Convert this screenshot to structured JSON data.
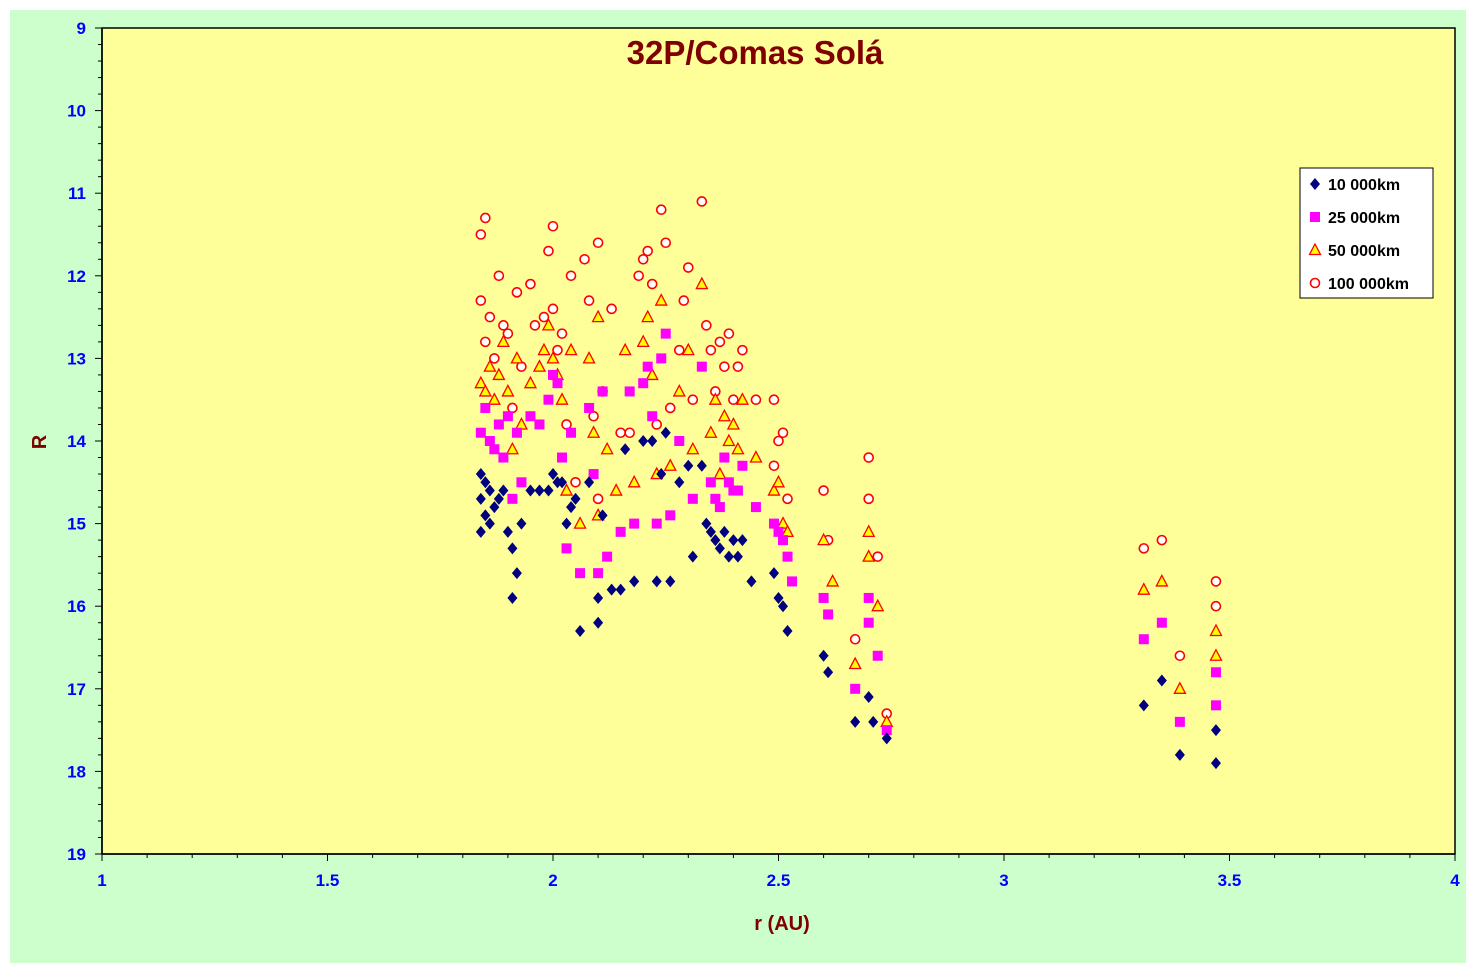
{
  "chart_data": {
    "type": "scatter",
    "title": "32P/Comas Solá",
    "xlabel": "r (AU)",
    "ylabel": "R",
    "xlim": [
      1,
      4
    ],
    "ylim": [
      9,
      19
    ],
    "y_inverted": true,
    "x_ticks": [
      "1",
      "1.5",
      "2",
      "2.5",
      "3",
      "3.5",
      "4"
    ],
    "y_ticks": [
      "9",
      "10",
      "11",
      "12",
      "13",
      "14",
      "15",
      "16",
      "17",
      "18",
      "19"
    ],
    "legend_position": "right",
    "colors": {
      "plot_background": "#ffff99",
      "chart_background": "#ccffcc",
      "tick_labels": "#0000ff",
      "titles": "#800000"
    },
    "series": [
      {
        "name": "10 000km",
        "marker": "diamond",
        "color": "#000080",
        "points": [
          [
            1.84,
            14.4
          ],
          [
            1.84,
            14.7
          ],
          [
            1.84,
            15.1
          ],
          [
            1.85,
            14.5
          ],
          [
            1.85,
            14.9
          ],
          [
            1.86,
            14.6
          ],
          [
            1.86,
            15.0
          ],
          [
            1.87,
            14.8
          ],
          [
            1.88,
            14.7
          ],
          [
            1.89,
            14.6
          ],
          [
            1.9,
            15.1
          ],
          [
            1.91,
            15.3
          ],
          [
            1.91,
            15.9
          ],
          [
            1.92,
            15.6
          ],
          [
            1.93,
            15.0
          ],
          [
            1.95,
            14.6
          ],
          [
            1.97,
            14.6
          ],
          [
            1.99,
            14.6
          ],
          [
            2.0,
            14.4
          ],
          [
            2.01,
            14.5
          ],
          [
            2.02,
            14.5
          ],
          [
            2.03,
            15.0
          ],
          [
            2.04,
            14.8
          ],
          [
            2.05,
            14.7
          ],
          [
            2.06,
            16.3
          ],
          [
            2.08,
            14.5
          ],
          [
            2.1,
            16.2
          ],
          [
            2.1,
            15.9
          ],
          [
            2.11,
            14.9
          ],
          [
            2.13,
            15.8
          ],
          [
            2.15,
            15.8
          ],
          [
            2.16,
            14.1
          ],
          [
            2.18,
            15.7
          ],
          [
            2.2,
            14.0
          ],
          [
            2.22,
            14.0
          ],
          [
            2.23,
            15.7
          ],
          [
            2.24,
            14.4
          ],
          [
            2.25,
            13.9
          ],
          [
            2.26,
            15.7
          ],
          [
            2.28,
            14.5
          ],
          [
            2.3,
            14.3
          ],
          [
            2.31,
            15.4
          ],
          [
            2.33,
            14.3
          ],
          [
            2.34,
            15.0
          ],
          [
            2.35,
            15.1
          ],
          [
            2.36,
            15.2
          ],
          [
            2.37,
            15.3
          ],
          [
            2.38,
            15.1
          ],
          [
            2.39,
            15.4
          ],
          [
            2.4,
            15.2
          ],
          [
            2.41,
            15.4
          ],
          [
            2.42,
            15.2
          ],
          [
            2.44,
            15.7
          ],
          [
            2.49,
            15.6
          ],
          [
            2.5,
            15.9
          ],
          [
            2.51,
            16.0
          ],
          [
            2.52,
            16.3
          ],
          [
            2.6,
            16.6
          ],
          [
            2.61,
            16.8
          ],
          [
            2.67,
            17.4
          ],
          [
            2.7,
            17.1
          ],
          [
            2.71,
            17.4
          ],
          [
            2.74,
            17.6
          ],
          [
            3.31,
            17.2
          ],
          [
            3.35,
            16.9
          ],
          [
            3.39,
            17.8
          ],
          [
            3.47,
            17.5
          ],
          [
            3.47,
            17.9
          ]
        ]
      },
      {
        "name": "25 000km",
        "marker": "square",
        "color": "#ff00ff",
        "points": [
          [
            1.84,
            13.9
          ],
          [
            1.85,
            13.6
          ],
          [
            1.86,
            14.0
          ],
          [
            1.87,
            14.1
          ],
          [
            1.88,
            13.8
          ],
          [
            1.89,
            14.2
          ],
          [
            1.9,
            13.7
          ],
          [
            1.91,
            14.7
          ],
          [
            1.92,
            13.9
          ],
          [
            1.93,
            14.5
          ],
          [
            1.95,
            13.7
          ],
          [
            1.97,
            13.8
          ],
          [
            1.99,
            13.5
          ],
          [
            2.0,
            13.2
          ],
          [
            2.01,
            13.3
          ],
          [
            2.02,
            14.2
          ],
          [
            2.03,
            15.3
          ],
          [
            2.04,
            13.9
          ],
          [
            2.06,
            15.6
          ],
          [
            2.08,
            13.6
          ],
          [
            2.09,
            14.4
          ],
          [
            2.1,
            15.6
          ],
          [
            2.11,
            13.4
          ],
          [
            2.12,
            15.4
          ],
          [
            2.15,
            15.1
          ],
          [
            2.17,
            13.4
          ],
          [
            2.18,
            15.0
          ],
          [
            2.2,
            13.3
          ],
          [
            2.21,
            13.1
          ],
          [
            2.22,
            13.7
          ],
          [
            2.23,
            15.0
          ],
          [
            2.24,
            13.0
          ],
          [
            2.25,
            12.7
          ],
          [
            2.26,
            14.9
          ],
          [
            2.28,
            14.0
          ],
          [
            2.31,
            14.7
          ],
          [
            2.33,
            13.1
          ],
          [
            2.35,
            14.5
          ],
          [
            2.36,
            14.7
          ],
          [
            2.37,
            14.8
          ],
          [
            2.38,
            14.2
          ],
          [
            2.39,
            14.5
          ],
          [
            2.4,
            14.6
          ],
          [
            2.41,
            14.6
          ],
          [
            2.42,
            14.3
          ],
          [
            2.45,
            14.8
          ],
          [
            2.49,
            15.0
          ],
          [
            2.5,
            15.1
          ],
          [
            2.51,
            15.2
          ],
          [
            2.52,
            15.4
          ],
          [
            2.53,
            15.7
          ],
          [
            2.6,
            15.9
          ],
          [
            2.61,
            16.1
          ],
          [
            2.67,
            17.0
          ],
          [
            2.7,
            16.2
          ],
          [
            2.7,
            15.9
          ],
          [
            2.72,
            16.6
          ],
          [
            2.74,
            17.5
          ],
          [
            3.31,
            16.4
          ],
          [
            3.35,
            16.2
          ],
          [
            3.39,
            17.4
          ],
          [
            3.47,
            16.8
          ],
          [
            3.47,
            17.2
          ]
        ]
      },
      {
        "name": "50 000km",
        "marker": "triangle",
        "color": "#ffff00",
        "stroke": "#ff0000",
        "points": [
          [
            1.84,
            13.3
          ],
          [
            1.85,
            13.4
          ],
          [
            1.86,
            13.1
          ],
          [
            1.87,
            13.5
          ],
          [
            1.88,
            13.2
          ],
          [
            1.89,
            12.8
          ],
          [
            1.9,
            13.4
          ],
          [
            1.91,
            14.1
          ],
          [
            1.92,
            13.0
          ],
          [
            1.93,
            13.8
          ],
          [
            1.95,
            13.3
          ],
          [
            1.97,
            13.1
          ],
          [
            1.98,
            12.9
          ],
          [
            1.99,
            12.6
          ],
          [
            2.0,
            13.0
          ],
          [
            2.01,
            13.2
          ],
          [
            2.02,
            13.5
          ],
          [
            2.03,
            14.6
          ],
          [
            2.04,
            12.9
          ],
          [
            2.06,
            15.0
          ],
          [
            2.08,
            13.0
          ],
          [
            2.09,
            13.9
          ],
          [
            2.1,
            14.9
          ],
          [
            2.1,
            12.5
          ],
          [
            2.12,
            14.1
          ],
          [
            2.14,
            14.6
          ],
          [
            2.16,
            12.9
          ],
          [
            2.18,
            14.5
          ],
          [
            2.2,
            12.8
          ],
          [
            2.21,
            12.5
          ],
          [
            2.22,
            13.2
          ],
          [
            2.23,
            14.4
          ],
          [
            2.24,
            12.3
          ],
          [
            2.26,
            14.3
          ],
          [
            2.28,
            13.4
          ],
          [
            2.3,
            12.9
          ],
          [
            2.31,
            14.1
          ],
          [
            2.33,
            12.1
          ],
          [
            2.35,
            13.9
          ],
          [
            2.36,
            13.5
          ],
          [
            2.37,
            14.4
          ],
          [
            2.38,
            13.7
          ],
          [
            2.39,
            14.0
          ],
          [
            2.4,
            13.8
          ],
          [
            2.41,
            14.1
          ],
          [
            2.42,
            13.5
          ],
          [
            2.45,
            14.2
          ],
          [
            2.49,
            14.6
          ],
          [
            2.5,
            14.5
          ],
          [
            2.51,
            15.0
          ],
          [
            2.52,
            15.1
          ],
          [
            2.6,
            15.2
          ],
          [
            2.62,
            15.7
          ],
          [
            2.67,
            16.7
          ],
          [
            2.7,
            15.1
          ],
          [
            2.7,
            15.4
          ],
          [
            2.72,
            16.0
          ],
          [
            2.74,
            17.4
          ],
          [
            3.31,
            15.8
          ],
          [
            3.35,
            15.7
          ],
          [
            3.39,
            17.0
          ],
          [
            3.47,
            16.3
          ],
          [
            3.47,
            16.6
          ]
        ]
      },
      {
        "name": "100 000km",
        "marker": "circle",
        "color": "#ff0000",
        "points": [
          [
            1.84,
            11.5
          ],
          [
            1.84,
            12.3
          ],
          [
            1.85,
            12.8
          ],
          [
            1.85,
            11.3
          ],
          [
            1.86,
            12.5
          ],
          [
            1.87,
            13.0
          ],
          [
            1.88,
            12.0
          ],
          [
            1.89,
            12.6
          ],
          [
            1.9,
            12.7
          ],
          [
            1.91,
            13.6
          ],
          [
            1.92,
            12.2
          ],
          [
            1.93,
            13.1
          ],
          [
            1.95,
            12.1
          ],
          [
            1.96,
            12.6
          ],
          [
            1.98,
            12.5
          ],
          [
            1.99,
            11.7
          ],
          [
            2.0,
            11.4
          ],
          [
            2.0,
            12.4
          ],
          [
            2.01,
            12.9
          ],
          [
            2.02,
            12.7
          ],
          [
            2.03,
            13.8
          ],
          [
            2.04,
            12.0
          ],
          [
            2.05,
            14.5
          ],
          [
            2.07,
            11.8
          ],
          [
            2.08,
            12.3
          ],
          [
            2.09,
            13.7
          ],
          [
            2.1,
            14.7
          ],
          [
            2.1,
            11.6
          ],
          [
            2.11,
            13.4
          ],
          [
            2.13,
            12.4
          ],
          [
            2.15,
            13.9
          ],
          [
            2.17,
            13.9
          ],
          [
            2.19,
            12.0
          ],
          [
            2.2,
            11.8
          ],
          [
            2.21,
            11.7
          ],
          [
            2.22,
            12.1
          ],
          [
            2.23,
            13.8
          ],
          [
            2.24,
            11.2
          ],
          [
            2.25,
            11.6
          ],
          [
            2.26,
            13.6
          ],
          [
            2.28,
            12.9
          ],
          [
            2.29,
            12.3
          ],
          [
            2.3,
            11.9
          ],
          [
            2.31,
            13.5
          ],
          [
            2.33,
            11.1
          ],
          [
            2.34,
            12.6
          ],
          [
            2.35,
            12.9
          ],
          [
            2.36,
            13.4
          ],
          [
            2.37,
            12.8
          ],
          [
            2.38,
            13.1
          ],
          [
            2.39,
            12.7
          ],
          [
            2.4,
            13.5
          ],
          [
            2.41,
            13.1
          ],
          [
            2.42,
            12.9
          ],
          [
            2.45,
            13.5
          ],
          [
            2.49,
            13.5
          ],
          [
            2.49,
            14.3
          ],
          [
            2.5,
            14.0
          ],
          [
            2.51,
            13.9
          ],
          [
            2.52,
            14.7
          ],
          [
            2.6,
            14.6
          ],
          [
            2.61,
            15.2
          ],
          [
            2.67,
            16.4
          ],
          [
            2.7,
            14.2
          ],
          [
            2.7,
            14.7
          ],
          [
            2.72,
            15.4
          ],
          [
            2.74,
            17.3
          ],
          [
            3.31,
            15.3
          ],
          [
            3.35,
            15.2
          ],
          [
            3.39,
            16.6
          ],
          [
            3.47,
            15.7
          ],
          [
            3.47,
            16.0
          ]
        ]
      }
    ]
  }
}
